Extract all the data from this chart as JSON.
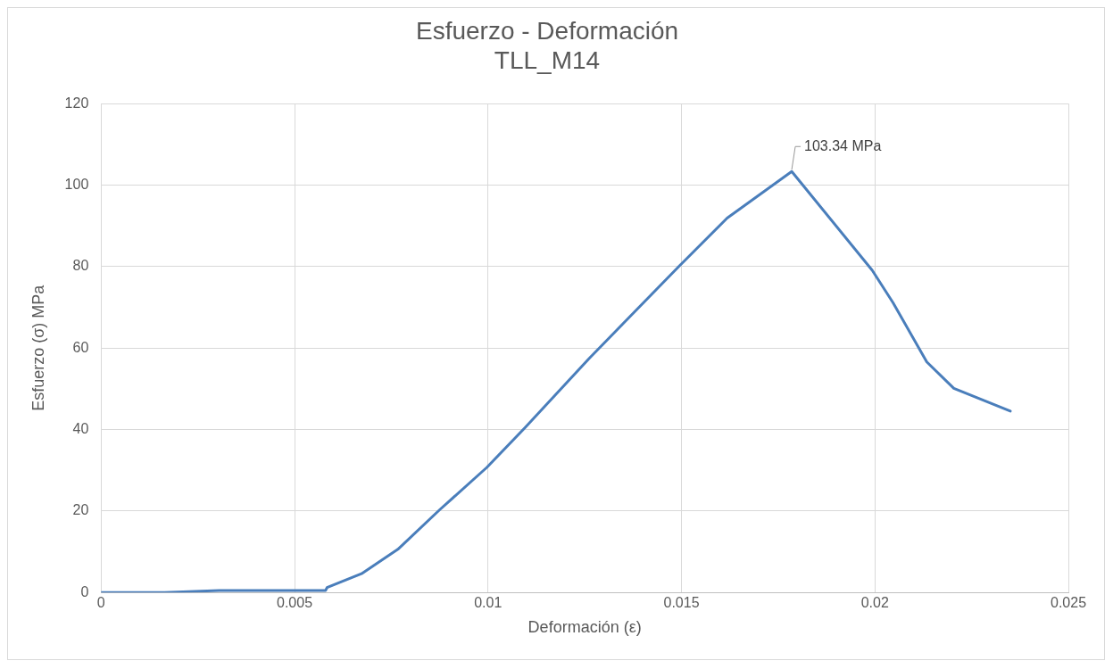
{
  "chart_data": {
    "type": "line",
    "title": [
      "Esfuerzo - Deformación",
      "TLL_M14"
    ],
    "xlabel": "Deformación (ε)",
    "ylabel": "Esfuerzo (σ) MPa",
    "x": [
      0,
      0.00164,
      0.00305,
      0.0049,
      0.0058,
      0.00584,
      0.00673,
      0.00767,
      0.00875,
      0.00997,
      0.01095,
      0.0126,
      0.01384,
      0.01496,
      0.01618,
      0.01785,
      0.01993,
      0.02047,
      0.02134,
      0.02204,
      0.0235
    ],
    "series": [
      {
        "color": "#4a7ebb",
        "values": [
          0,
          0,
          0.5,
          0.5,
          0.5,
          1.2,
          4.6,
          10.6,
          20.3,
          30.7,
          40.4,
          57.3,
          69.4,
          80.3,
          91.9,
          103.34,
          79.1,
          71.1,
          56.6,
          50.1,
          44.5
        ]
      }
    ],
    "xlim": [
      0,
      0.025
    ],
    "xticks": [
      0,
      0.005,
      0.01,
      0.015,
      0.02,
      0.025
    ],
    "ylim": [
      0,
      120
    ],
    "yticks": [
      0,
      20,
      40,
      60,
      80,
      100,
      120
    ],
    "annotations": [
      {
        "text": "103.34 MPa",
        "x": 0.01785,
        "y": 103.34
      }
    ],
    "grid": true,
    "legend": false,
    "marker": "none",
    "line_style": "solid"
  }
}
